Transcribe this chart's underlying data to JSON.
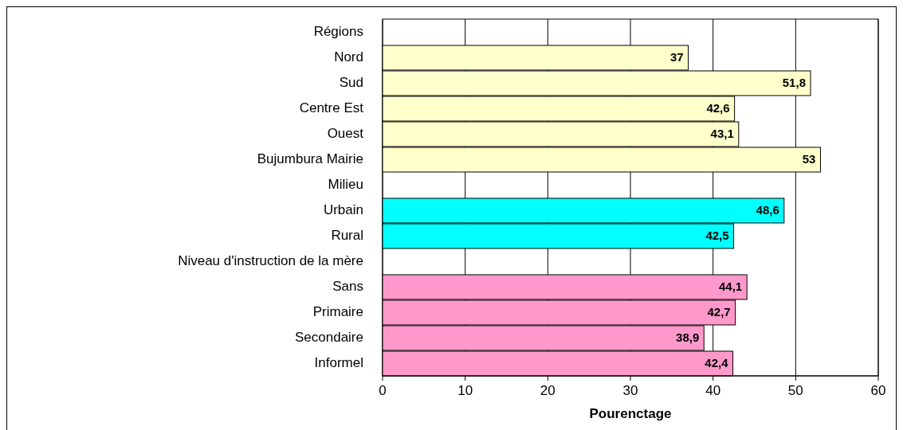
{
  "chart_data": {
    "type": "bar",
    "orientation": "horizontal",
    "xlabel": "Pourenctage",
    "categories": [
      "Régions",
      "Nord",
      "Sud",
      "Centre Est",
      "Ouest",
      "Bujumbura Mairie ",
      "Milieu",
      "Urbain",
      "Rural",
      "Niveau d'instruction de la mère",
      "Sans",
      "Primaire",
      "Secondaire",
      "Informel"
    ],
    "values": [
      null,
      37,
      51.8,
      42.6,
      43.1,
      53,
      null,
      48.6,
      42.5,
      null,
      44.1,
      42.7,
      38.9,
      42.4
    ],
    "value_labels": [
      null,
      "37",
      "51,8",
      "42,6",
      "43,1",
      "53",
      null,
      "48,6",
      "42,5",
      null,
      "44,1",
      "42,7",
      "38,9",
      "42,4"
    ],
    "colors": [
      null,
      "#ffffcc",
      "#ffffcc",
      "#ffffcc",
      "#ffffcc",
      "#ffffcc",
      null,
      "#00ffff",
      "#00ffff",
      null,
      "#ff99cc",
      "#ff99cc",
      "#ff99cc",
      "#ff99cc"
    ],
    "xlim": [
      0,
      60
    ],
    "xticks": [
      0,
      10,
      20,
      30,
      40,
      50,
      60
    ],
    "grid": "x"
  }
}
